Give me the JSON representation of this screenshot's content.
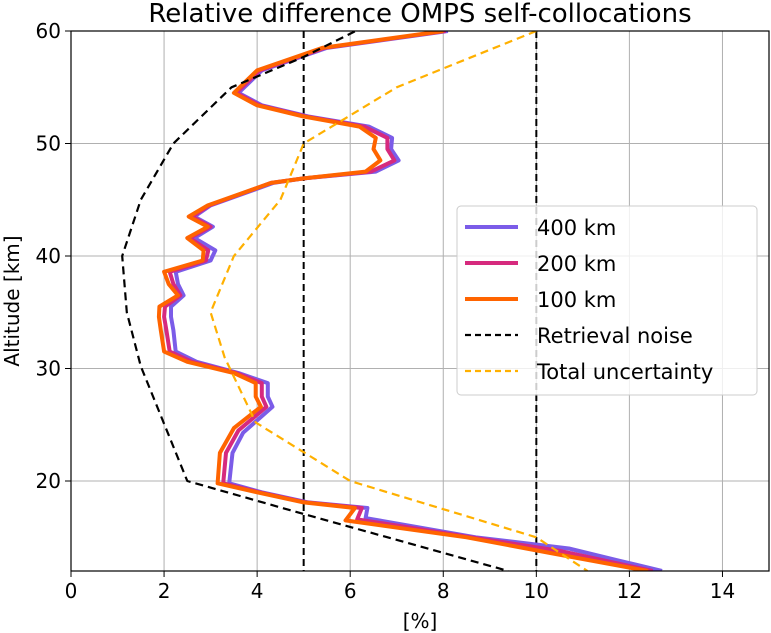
{
  "chart_data": {
    "type": "line",
    "title": "Relative difference OMPS self-collocations",
    "xlabel": "[%]",
    "ylabel": "Altitude [km]",
    "xlim": [
      0,
      15
    ],
    "ylim": [
      12,
      60
    ],
    "xticks": [
      0,
      2,
      4,
      6,
      8,
      10,
      12,
      14
    ],
    "yticks": [
      20,
      30,
      40,
      50,
      60
    ],
    "grid": true,
    "legend_position": "center-right",
    "reference_lines": [
      {
        "x": 5,
        "color": "#000000",
        "style": "dashed"
      },
      {
        "x": 10,
        "color": "#000000",
        "style": "dashed"
      }
    ],
    "series": [
      {
        "name": "400 km",
        "color": "#7b5ce8",
        "style": "solid",
        "points": [
          [
            8.1,
            60
          ],
          [
            5.5,
            58.5
          ],
          [
            4.1,
            56.5
          ],
          [
            3.6,
            54.5
          ],
          [
            4.1,
            53.4
          ],
          [
            5.1,
            52.4
          ],
          [
            6.4,
            51.5
          ],
          [
            6.9,
            50.5
          ],
          [
            6.88,
            49.5
          ],
          [
            7.04,
            48.5
          ],
          [
            6.55,
            47.5
          ],
          [
            5.0,
            46.9
          ],
          [
            4.35,
            46.5
          ],
          [
            3.0,
            44.5
          ],
          [
            2.65,
            43.5
          ],
          [
            3.05,
            42.6
          ],
          [
            2.65,
            41.6
          ],
          [
            3.1,
            40.5
          ],
          [
            3.0,
            39.6
          ],
          [
            2.25,
            38.6
          ],
          [
            2.3,
            37.5
          ],
          [
            2.42,
            36.5
          ],
          [
            2.15,
            35.5
          ],
          [
            2.15,
            34.6
          ],
          [
            2.2,
            33.4
          ],
          [
            2.25,
            31.5
          ],
          [
            2.7,
            30.6
          ],
          [
            3.6,
            29.6
          ],
          [
            4.23,
            28.7
          ],
          [
            4.23,
            27.5
          ],
          [
            4.33,
            26.6
          ],
          [
            3.7,
            24.3
          ],
          [
            3.47,
            22.5
          ],
          [
            3.4,
            19.8
          ],
          [
            4.1,
            19
          ],
          [
            5.1,
            18.1
          ],
          [
            6.37,
            17.6
          ],
          [
            6.33,
            16.7
          ],
          [
            8.7,
            15.0
          ],
          [
            10.7,
            14.0
          ],
          [
            11.8,
            12.9
          ],
          [
            12.7,
            12
          ]
        ]
      },
      {
        "name": "200 km",
        "color": "#d62a7e",
        "style": "solid",
        "points": [
          [
            8.05,
            60
          ],
          [
            5.45,
            58.5
          ],
          [
            4.05,
            56.5
          ],
          [
            3.55,
            54.5
          ],
          [
            4.05,
            53.4
          ],
          [
            5.05,
            52.4
          ],
          [
            6.3,
            51.5
          ],
          [
            6.8,
            50.5
          ],
          [
            6.8,
            49.5
          ],
          [
            6.95,
            48.5
          ],
          [
            6.45,
            47.5
          ],
          [
            5.0,
            46.9
          ],
          [
            4.3,
            46.5
          ],
          [
            2.97,
            44.5
          ],
          [
            2.6,
            43.5
          ],
          [
            3.0,
            42.6
          ],
          [
            2.55,
            41.6
          ],
          [
            2.95,
            40.5
          ],
          [
            2.9,
            39.6
          ],
          [
            2.12,
            38.6
          ],
          [
            2.2,
            37.5
          ],
          [
            2.35,
            36.5
          ],
          [
            2.02,
            35.5
          ],
          [
            2.0,
            34.6
          ],
          [
            2.05,
            33.4
          ],
          [
            2.12,
            31.5
          ],
          [
            2.6,
            30.6
          ],
          [
            3.55,
            29.6
          ],
          [
            4.1,
            28.7
          ],
          [
            4.1,
            27.5
          ],
          [
            4.2,
            26.6
          ],
          [
            3.6,
            24.5
          ],
          [
            3.33,
            22.5
          ],
          [
            3.27,
            19.8
          ],
          [
            4.05,
            19
          ],
          [
            5.05,
            18.1
          ],
          [
            6.25,
            17.6
          ],
          [
            6.15,
            16.6
          ],
          [
            8.6,
            15.0
          ],
          [
            10.5,
            13.8
          ],
          [
            12.5,
            12
          ]
        ]
      },
      {
        "name": "100 km",
        "color": "#ff6400",
        "style": "solid",
        "points": [
          [
            8.0,
            60
          ],
          [
            5.4,
            58.5
          ],
          [
            4.0,
            56.5
          ],
          [
            3.5,
            54.5
          ],
          [
            4.0,
            53.4
          ],
          [
            5.0,
            52.4
          ],
          [
            6.2,
            51.5
          ],
          [
            6.55,
            50.5
          ],
          [
            6.5,
            49.5
          ],
          [
            6.65,
            48.5
          ],
          [
            6.33,
            47.5
          ],
          [
            5.0,
            46.9
          ],
          [
            4.3,
            46.5
          ],
          [
            2.94,
            44.5
          ],
          [
            2.53,
            43.5
          ],
          [
            2.94,
            42.6
          ],
          [
            2.5,
            41.6
          ],
          [
            2.85,
            40.5
          ],
          [
            2.83,
            39.6
          ],
          [
            2.0,
            38.6
          ],
          [
            2.1,
            37.5
          ],
          [
            2.3,
            36.5
          ],
          [
            1.9,
            35.5
          ],
          [
            1.89,
            34.6
          ],
          [
            1.93,
            33.4
          ],
          [
            2.0,
            31.5
          ],
          [
            2.5,
            30.6
          ],
          [
            3.5,
            29.6
          ],
          [
            3.97,
            28.7
          ],
          [
            3.97,
            27.5
          ],
          [
            4.08,
            26.6
          ],
          [
            3.5,
            24.7
          ],
          [
            3.2,
            22.5
          ],
          [
            3.15,
            19.8
          ],
          [
            4.0,
            19
          ],
          [
            5.0,
            18.1
          ],
          [
            6.1,
            17.6
          ],
          [
            5.9,
            16.5
          ],
          [
            8.5,
            15.0
          ],
          [
            10.3,
            13.6
          ],
          [
            12.4,
            12
          ]
        ]
      },
      {
        "name": "Retrieval noise",
        "color": "#000000",
        "style": "dashed",
        "points": [
          [
            6.6,
            61
          ],
          [
            5.0,
            57.7
          ],
          [
            3.45,
            55
          ],
          [
            2.2,
            50
          ],
          [
            1.5,
            45
          ],
          [
            1.1,
            40
          ],
          [
            1.2,
            35
          ],
          [
            1.5,
            30.2
          ],
          [
            2.5,
            20
          ],
          [
            4.8,
            17.3
          ],
          [
            9.4,
            12
          ]
        ]
      },
      {
        "name": "Total uncertainty",
        "color": "#ffb000",
        "style": "dashed",
        "points": [
          [
            10.0,
            60
          ],
          [
            7.0,
            55
          ],
          [
            5.0,
            50
          ],
          [
            4.5,
            45
          ],
          [
            3.5,
            40
          ],
          [
            3.0,
            35
          ],
          [
            3.3,
            31
          ],
          [
            3.97,
            25.2
          ],
          [
            6.0,
            20
          ],
          [
            10.0,
            15
          ],
          [
            11.1,
            12
          ]
        ]
      }
    ]
  }
}
